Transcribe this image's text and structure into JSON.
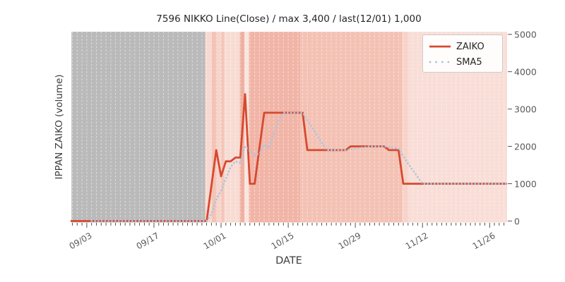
{
  "title": "7596 NIKKO Line(Close) / max 3,400 / last(12/01) 1,000",
  "axes": {
    "x_label": "DATE",
    "y_label": "IPPAN ZAIKO (volume)",
    "x_tick_labels": [
      "09/03",
      "09/17",
      "10/01",
      "10/15",
      "10/29",
      "11/12",
      "11/26"
    ],
    "y_tick_labels": [
      "0",
      "1000",
      "2000",
      "3000",
      "4000",
      "5000"
    ]
  },
  "legend": {
    "position": "upper right",
    "entries": [
      {
        "label": "ZAIKO",
        "color": "#d6492f",
        "line_style": "solid"
      },
      {
        "label": "SMA5",
        "color": "#a9c5e0",
        "line_style": "dotted"
      }
    ]
  },
  "chart_data": {
    "type": "line",
    "title": "7596 NIKKO Line(Close) / max 3,400 / last(12/01) 1,000",
    "xlabel": "DATE",
    "ylabel": "IPPAN ZAIKO (volume)",
    "ylim": [
      0,
      5000
    ],
    "x_range": [
      "08/31",
      "12/01"
    ],
    "x_major_ticks": [
      "09/03",
      "09/17",
      "10/01",
      "10/15",
      "10/29",
      "11/12",
      "11/26"
    ],
    "max_value": 3400,
    "last_date": "12/01",
    "last_value": 1000,
    "grid": "white dashed vertical gridlines, daily",
    "series": [
      {
        "name": "ZAIKO",
        "color": "#d6492f",
        "style": "solid",
        "runs": [
          [
            "08/31",
            "09/28",
            0
          ],
          [
            "09/29",
            "09/29",
            950
          ],
          [
            "09/30",
            "09/30",
            1900
          ],
          [
            "10/01",
            "10/01",
            1200
          ],
          [
            "10/02",
            "10/03",
            1600
          ],
          [
            "10/04",
            "10/05",
            1700
          ],
          [
            "10/06",
            "10/06",
            3400
          ],
          [
            "10/07",
            "10/08",
            1000
          ],
          [
            "10/09",
            "10/09",
            1950
          ],
          [
            "10/10",
            "10/18",
            2900
          ],
          [
            "10/19",
            "10/27",
            1900
          ],
          [
            "10/28",
            "11/04",
            2000
          ],
          [
            "11/05",
            "11/07",
            1900
          ],
          [
            "11/08",
            "12/01",
            1000
          ]
        ]
      },
      {
        "name": "SMA5",
        "color": "#a9c5e0",
        "style": "dotted",
        "derived_from": "ZAIKO",
        "window": 5
      }
    ],
    "background_bands": [
      {
        "start_day": -3.2,
        "start_date": "08/31",
        "color": "#bababa"
      },
      {
        "start_day": 24.7,
        "start_date": "09/28",
        "color": "#f7d9d1"
      },
      {
        "start_day": 26.0,
        "start_date": "09/29",
        "color": "#f3c3b6"
      },
      {
        "start_day": 27.1,
        "start_date": "09/30",
        "color": "#f6d5cc"
      },
      {
        "start_day": 28.0,
        "start_date": "10/01",
        "color": "#f3c6b9"
      },
      {
        "start_day": 28.7,
        "start_date": "10/02",
        "color": "#f8dcd4"
      },
      {
        "start_day": 31.9,
        "start_date": "10/05",
        "color": "#efb1a2"
      },
      {
        "start_day": 32.9,
        "start_date": "10/06",
        "color": "#fae6df"
      },
      {
        "start_day": 33.8,
        "start_date": "10/07",
        "color": "#f1b5a7"
      },
      {
        "start_day": 44.5,
        "start_date": "10/18",
        "color": "#f4c2b4"
      },
      {
        "start_day": 65.8,
        "start_date": "11/08",
        "color": "#f7d3c9"
      },
      {
        "start_day": 67.1,
        "start_date": "11/09",
        "color": "#f9ded7"
      }
    ]
  }
}
